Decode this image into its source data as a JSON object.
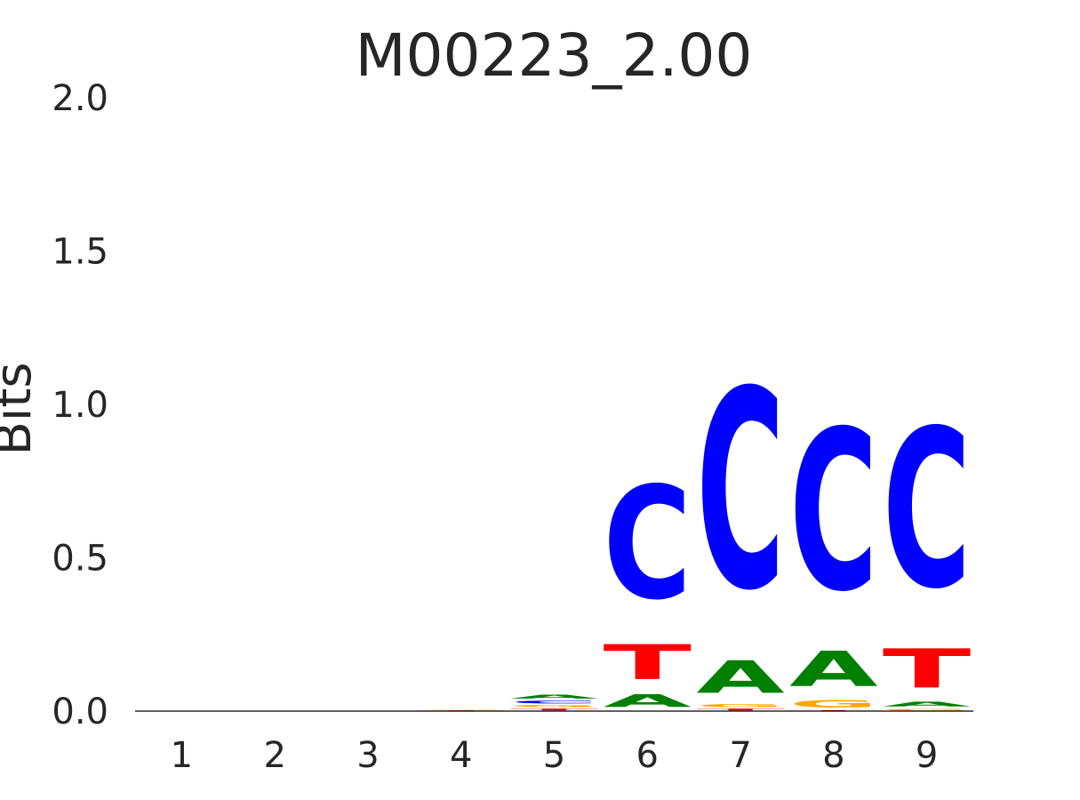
{
  "chart_data": {
    "type": "sequence-logo",
    "title": "M00223_2.00",
    "ylabel": "Bits",
    "xlabel": "",
    "ylim": [
      0,
      2
    ],
    "grid": false,
    "yticks": [
      "0.0",
      "0.5",
      "1.0",
      "1.5",
      "2.0"
    ],
    "ytick_values": [
      0,
      0.5,
      1.0,
      1.5,
      2.0
    ],
    "xticks": [
      "1",
      "2",
      "3",
      "4",
      "5",
      "6",
      "7",
      "8",
      "9"
    ],
    "colors": {
      "A": "#008000",
      "C": "#0000ff",
      "G": "#ffa500",
      "T": "#ff0000"
    },
    "positions": [
      {
        "pos": "1",
        "letters": []
      },
      {
        "pos": "2",
        "letters": []
      },
      {
        "pos": "3",
        "letters": []
      },
      {
        "pos": "4",
        "letters": [
          {
            "base": "T",
            "bits": 0.003
          },
          {
            "base": "G",
            "bits": 0.002
          }
        ]
      },
      {
        "pos": "5",
        "letters": [
          {
            "base": "T",
            "bits": 0.01
          },
          {
            "base": "G",
            "bits": 0.012
          },
          {
            "base": "C",
            "bits": 0.015
          },
          {
            "base": "A",
            "bits": 0.02
          }
        ]
      },
      {
        "pos": "6",
        "letters": [
          {
            "base": "A",
            "bits": 0.067
          },
          {
            "base": "T",
            "bits": 0.183
          },
          {
            "base": "C",
            "bits": 0.59
          }
        ]
      },
      {
        "pos": "7",
        "letters": [
          {
            "base": "T",
            "bits": 0.01
          },
          {
            "base": "G",
            "bits": 0.015
          },
          {
            "base": "A",
            "bits": 0.17
          },
          {
            "base": "C",
            "bits": 1.04
          }
        ]
      },
      {
        "pos": "8",
        "letters": [
          {
            "base": "T",
            "bits": 0.004
          },
          {
            "base": "G",
            "bits": 0.04
          },
          {
            "base": "A",
            "bits": 0.185
          },
          {
            "base": "C",
            "bits": 0.84
          }
        ]
      },
      {
        "pos": "9",
        "letters": [
          {
            "base": "G",
            "bits": 0.01
          },
          {
            "base": "A",
            "bits": 0.025
          },
          {
            "base": "T",
            "bits": 0.205
          },
          {
            "base": "C",
            "bits": 0.83
          }
        ]
      }
    ]
  }
}
